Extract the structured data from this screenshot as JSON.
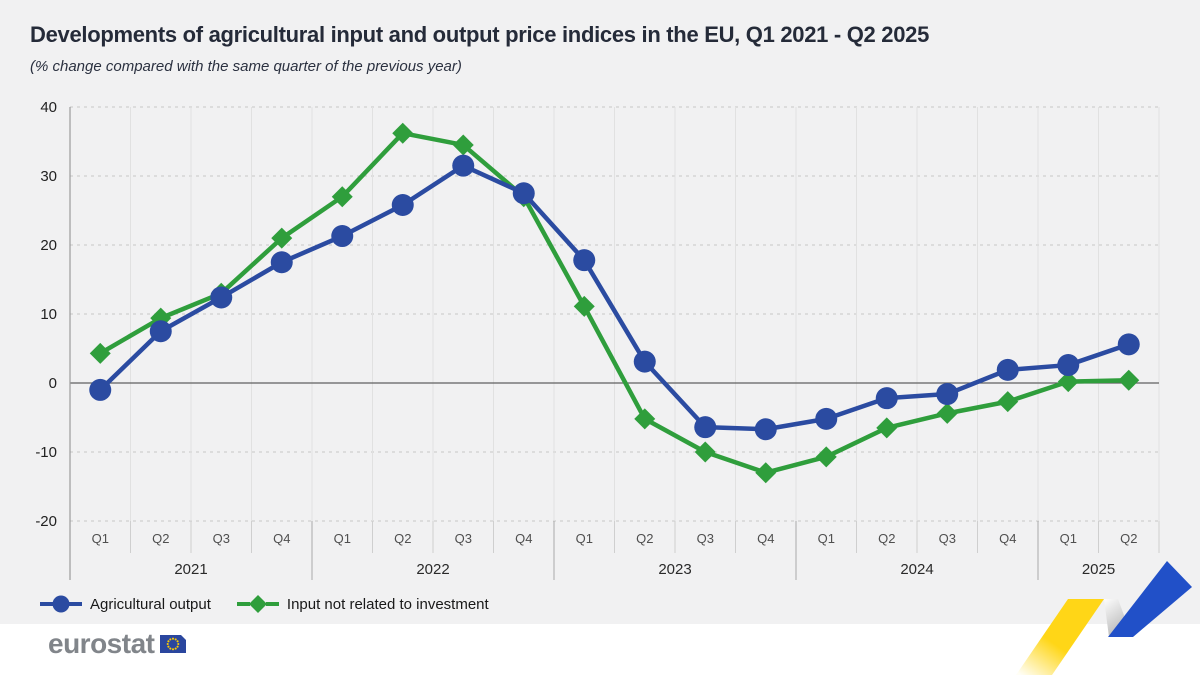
{
  "title": "Developments of agricultural input and output price indices in the EU, Q1 2021 - Q2 2025",
  "subtitle": "(% change compared with the same quarter of the previous year)",
  "chart_data": {
    "type": "line",
    "unit": "% change compared with the same quarter of the previous year",
    "years": [
      {
        "label": "2021",
        "quarters": [
          "Q1",
          "Q2",
          "Q3",
          "Q4"
        ]
      },
      {
        "label": "2022",
        "quarters": [
          "Q1",
          "Q2",
          "Q3",
          "Q4"
        ]
      },
      {
        "label": "2023",
        "quarters": [
          "Q1",
          "Q2",
          "Q3",
          "Q4"
        ]
      },
      {
        "label": "2024",
        "quarters": [
          "Q1",
          "Q2",
          "Q3",
          "Q4"
        ]
      },
      {
        "label": "2025",
        "quarters": [
          "Q1",
          "Q2"
        ]
      }
    ],
    "series": [
      {
        "name": "Agricultural output",
        "marker": "circle",
        "color": "#2b4ba1",
        "values": [
          -1.0,
          7.5,
          12.4,
          17.5,
          21.3,
          25.8,
          31.5,
          27.5,
          17.8,
          3.1,
          -6.4,
          -6.7,
          -5.2,
          -2.2,
          -1.6,
          1.9,
          2.6,
          5.6
        ]
      },
      {
        "name": "Input not related to investment",
        "marker": "diamond",
        "color": "#2f9e3c",
        "values": [
          4.3,
          9.4,
          13.0,
          21.0,
          27.0,
          36.2,
          34.5,
          27.0,
          11.1,
          -5.2,
          -10.0,
          -13.0,
          -10.7,
          -6.5,
          -4.4,
          -2.7,
          0.2,
          0.4
        ]
      }
    ],
    "ylim": [
      -20,
      40
    ],
    "ytick_step": 10,
    "yticks": [
      -20,
      -10,
      0,
      10,
      20,
      30,
      40
    ],
    "grid": "horizontal dashed gridlines, vertical quarter-boundary lines",
    "legend_position": "bottom-left"
  },
  "footer": {
    "logo_text": "eurostat"
  },
  "colors": {
    "background_top": "#f1f1f2",
    "background_bottom": "#ffffff",
    "title_text": "#252b39",
    "series_output_blue": "#2b4ba1",
    "series_input_green": "#2f9e3c",
    "zero_line": "#616161",
    "axis_line": "#9b9b9b",
    "grid_dashed": "#c6c6c6",
    "grid_vertical": "#e1e1e1",
    "year_separator": "#a9a9a9",
    "quarter_separator": "#cfcfcf",
    "ribbon_yellow": "#ffd617",
    "ribbon_blue": "#2150c8",
    "ribbon_gray_dark": "#a7a7a7",
    "ribbon_gray_light": "#fdfdfd",
    "eu_flag_blue": "#2a469e",
    "eu_star_yellow": "#ffcc00",
    "logo_text_gray": "#81858a"
  }
}
